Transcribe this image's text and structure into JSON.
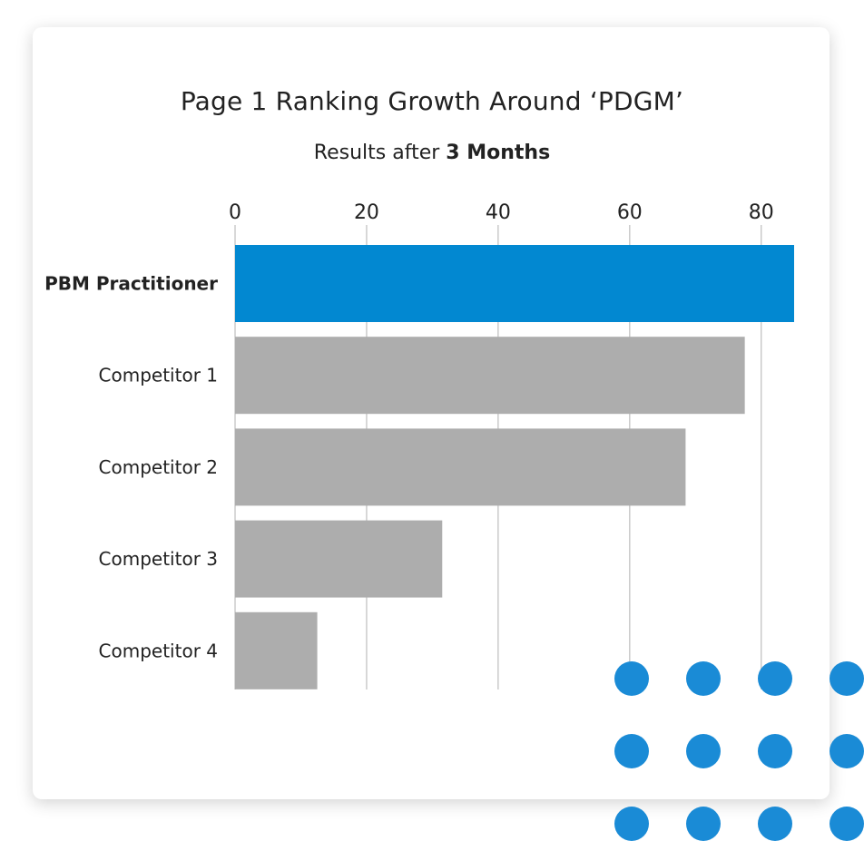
{
  "chart_data": {
    "type": "bar",
    "orientation": "horizontal",
    "title": "Page 1 Ranking Growth Around ‘PDGM’",
    "subtitle_prefix": "Results after",
    "subtitle_emphasis": "3 Months",
    "categories": [
      "PBM Practitioner",
      "Competitor 1",
      "Competitor 2",
      "Competitor 3",
      "Competitor 4"
    ],
    "values": [
      85,
      77.5,
      68.5,
      31.5,
      12.5
    ],
    "ticks": [
      "0",
      "20",
      "40",
      "60",
      "80"
    ],
    "xlim": [
      0,
      85
    ],
    "grid": true,
    "xaxis_position": "top",
    "highlight_category": "PBM Practitioner"
  },
  "colors": {
    "highlight": "#0288D1",
    "bar": "#ADADAD",
    "grid": "#BDBDBD",
    "decor_dots": "#1A8BD6"
  },
  "decoration": {
    "dot_grid": {
      "rows": 3,
      "cols": 4,
      "icon": "dot-icon"
    }
  }
}
